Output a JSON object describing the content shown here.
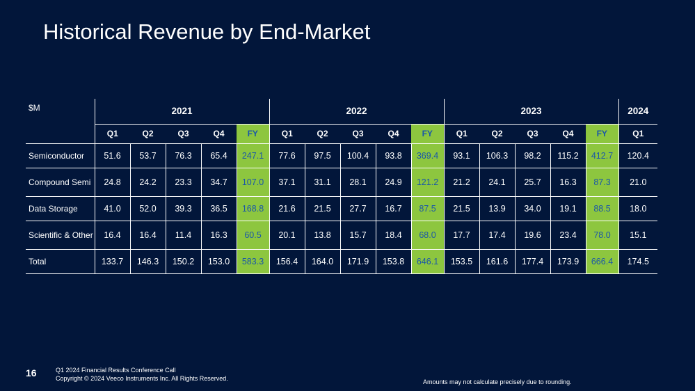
{
  "slide": {
    "title": "Historical Revenue by End-Market",
    "page_number": "16",
    "footer_line1": "Q1 2024 Financial Results Conference Call",
    "footer_line2": "Copyright © 2024 Veeco Instruments Inc. All Rights Reserved.",
    "note": "Amounts may not calculate precisely due to rounding."
  },
  "table": {
    "unit": "$M",
    "years": [
      "2021",
      "2022",
      "2023",
      "2024"
    ],
    "quarters": [
      "Q1",
      "Q2",
      "Q3",
      "Q4",
      "FY",
      "Q1",
      "Q2",
      "Q3",
      "Q4",
      "FY",
      "Q1",
      "Q2",
      "Q3",
      "Q4",
      "FY",
      "Q1"
    ],
    "rows": [
      {
        "label": "Semiconductor",
        "values": [
          "51.6",
          "53.7",
          "76.3",
          "65.4",
          "247.1",
          "77.6",
          "97.5",
          "100.4",
          "93.8",
          "369.4",
          "93.1",
          "106.3",
          "98.2",
          "115.2",
          "412.7",
          "120.4"
        ]
      },
      {
        "label": "Compound Semi",
        "values": [
          "24.8",
          "24.2",
          "23.3",
          "34.7",
          "107.0",
          "37.1",
          "31.1",
          "28.1",
          "24.9",
          "121.2",
          "21.2",
          "24.1",
          "25.7",
          "16.3",
          "87.3",
          "21.0"
        ]
      },
      {
        "label": "Data Storage",
        "values": [
          "41.0",
          "52.0",
          "39.3",
          "36.5",
          "168.8",
          "21.6",
          "21.5",
          "27.7",
          "16.7",
          "87.5",
          "21.5",
          "13.9",
          "34.0",
          "19.1",
          "88.5",
          "18.0"
        ]
      },
      {
        "label": "Scientific & Other",
        "values": [
          "16.4",
          "16.4",
          "11.4",
          "16.3",
          "60.5",
          "20.1",
          "13.8",
          "15.7",
          "18.4",
          "68.0",
          "17.7",
          "17.4",
          "19.6",
          "23.4",
          "78.0",
          "15.1"
        ]
      },
      {
        "label": "Total",
        "values": [
          "133.7",
          "146.3",
          "150.2",
          "153.0",
          "583.3",
          "156.4",
          "164.0",
          "171.9",
          "153.8",
          "646.1",
          "153.5",
          "161.6",
          "177.4",
          "173.9",
          "666.4",
          "174.5"
        ]
      }
    ]
  }
}
